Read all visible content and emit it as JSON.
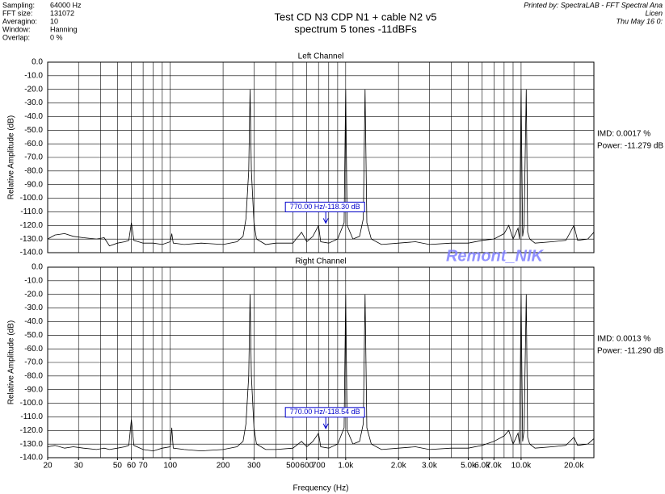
{
  "header": {
    "info_labels": [
      "Sampling:",
      "FFT size:",
      "Averagino:",
      "Window:",
      "Overlap:"
    ],
    "info_values": [
      "64000 Hz",
      "131072",
      "10",
      "Hanning",
      "0 %"
    ],
    "title": "Test CD N3  CDP N1 + cable N2   v5",
    "subtitle": "spectrum 5 tones  -11dBFs",
    "printed": "Printed by: SpectraLAB - FFT Spectral Ana",
    "license": "Licen",
    "date": "Thu May 16 0:",
    "watermark": "Remont_NIK"
  },
  "chart_data": [
    {
      "type": "line",
      "title": "Left Channel",
      "ylabel": "Relative Amplitude (dB)",
      "log_x": true,
      "grid": true,
      "xlim": [
        20,
        26000
      ],
      "ylim": [
        -140,
        0
      ],
      "xgrid": [
        20,
        30,
        40,
        50,
        60,
        70,
        80,
        90,
        100,
        200,
        300,
        400,
        500,
        600,
        700,
        800,
        900,
        1000,
        2000,
        3000,
        4000,
        5000,
        6000,
        7000,
        8000,
        9000,
        10000,
        20000
      ],
      "yticks": [
        {
          "value": 0,
          "label": "0.0"
        },
        {
          "value": -10,
          "label": "-10.0"
        },
        {
          "value": -20,
          "label": "-20.0"
        },
        {
          "value": -30,
          "label": "-30.0"
        },
        {
          "value": -40,
          "label": "-40.0"
        },
        {
          "value": -50,
          "label": "-50.0"
        },
        {
          "value": -60,
          "label": "-60.0"
        },
        {
          "value": -70,
          "label": "-70.0"
        },
        {
          "value": -80,
          "label": "-80.0"
        },
        {
          "value": -90,
          "label": "-90.0"
        },
        {
          "value": -100,
          "label": "-100.0"
        },
        {
          "value": -110,
          "label": "-110.0"
        },
        {
          "value": -120,
          "label": "-120.0"
        },
        {
          "value": -130,
          "label": "-130.0"
        },
        {
          "value": -140,
          "label": "-140.0"
        }
      ],
      "x": [
        20,
        22,
        25,
        28,
        32,
        38,
        42,
        45,
        50,
        55,
        58,
        60,
        62,
        70,
        80,
        90,
        100,
        102,
        104,
        120,
        150,
        200,
        240,
        260,
        270,
        280,
        285,
        290,
        300,
        310,
        350,
        400,
        500,
        560,
        600,
        650,
        700,
        720,
        800,
        900,
        980,
        1000,
        1020,
        1100,
        1200,
        1260,
        1290,
        1320,
        1400,
        1600,
        2000,
        2500,
        3000,
        4000,
        5000,
        6000,
        7000,
        8000,
        8500,
        9000,
        9600,
        9800,
        10000,
        10200,
        10400,
        10700,
        10900,
        11200,
        12000,
        15000,
        18000,
        20000,
        21000,
        24000,
        26000
      ],
      "series": [
        {
          "name": "Left",
          "color": "#000000",
          "values": [
            -130,
            -127,
            -126,
            -128,
            -129,
            -130,
            -129,
            -135,
            -133,
            -132,
            -131,
            -118,
            -131,
            -133,
            -133,
            -134,
            -132,
            -126,
            -133,
            -134,
            -133,
            -134,
            -132,
            -128,
            -115,
            -80,
            -20,
            -80,
            -118,
            -130,
            -134,
            -133,
            -133,
            -125,
            -132,
            -128,
            -120,
            -132,
            -133,
            -130,
            -118,
            -20,
            -120,
            -130,
            -128,
            -115,
            -20,
            -118,
            -130,
            -134,
            -133,
            -132,
            -134,
            -133,
            -133,
            -131,
            -130,
            -126,
            -120,
            -130,
            -122,
            -130,
            -20,
            -128,
            -120,
            -20,
            -125,
            -130,
            -133,
            -132,
            -131,
            -120,
            -131,
            -130,
            -125
          ]
        }
      ],
      "marker": {
        "text": "770.00 Hz/-118.30 dB",
        "x": 770,
        "y": -118.3
      },
      "info": [
        "IMD: 0.0017 %",
        "Power: -11.279 dB"
      ]
    },
    {
      "type": "line",
      "title": "Right Channel",
      "ylabel": "Relative Amplitude (dB)",
      "xlabel": "Frequency (Hz)",
      "log_x": true,
      "grid": true,
      "xlim": [
        20,
        26000
      ],
      "ylim": [
        -140,
        0
      ],
      "xgrid": [
        20,
        30,
        40,
        50,
        60,
        70,
        80,
        90,
        100,
        200,
        300,
        400,
        500,
        600,
        700,
        800,
        900,
        1000,
        2000,
        3000,
        4000,
        5000,
        6000,
        7000,
        8000,
        9000,
        10000,
        20000
      ],
      "xticks": [
        20,
        30,
        50,
        60,
        70,
        100,
        200,
        300,
        500,
        600,
        700,
        {
          "value": 1000,
          "label": "1.0k"
        },
        {
          "value": 2000,
          "label": "2.0k"
        },
        {
          "value": 3000,
          "label": "3.0k"
        },
        {
          "value": 5000,
          "label": "5.0k"
        },
        {
          "value": 6000,
          "label": "6.0k"
        },
        {
          "value": 7000,
          "label": "7.0k"
        },
        {
          "value": 10000,
          "label": "10.0k"
        },
        {
          "value": 20000,
          "label": "20.0k"
        }
      ],
      "yticks": [
        {
          "value": 0,
          "label": "0.0"
        },
        {
          "value": -10,
          "label": "-10.0"
        },
        {
          "value": -20,
          "label": "-20.0"
        },
        {
          "value": -30,
          "label": "-30.0"
        },
        {
          "value": -40,
          "label": "-40.0"
        },
        {
          "value": -50,
          "label": "-50.0"
        },
        {
          "value": -60,
          "label": "-60.0"
        },
        {
          "value": -70,
          "label": "-70.0"
        },
        {
          "value": -80,
          "label": "-80.0"
        },
        {
          "value": -90,
          "label": "-90.0"
        },
        {
          "value": -100,
          "label": "-100.0"
        },
        {
          "value": -110,
          "label": "-110.0"
        },
        {
          "value": -120,
          "label": "-120.0"
        },
        {
          "value": -130,
          "label": "-130.0"
        },
        {
          "value": -140,
          "label": "-140.0"
        }
      ],
      "x": [
        20,
        22,
        25,
        28,
        32,
        38,
        42,
        45,
        50,
        55,
        58,
        60,
        62,
        70,
        80,
        90,
        100,
        102,
        104,
        120,
        150,
        200,
        240,
        260,
        270,
        280,
        285,
        290,
        300,
        310,
        350,
        400,
        500,
        560,
        600,
        650,
        700,
        720,
        800,
        900,
        980,
        1000,
        1020,
        1100,
        1200,
        1260,
        1290,
        1320,
        1400,
        1600,
        2000,
        2500,
        3000,
        4000,
        5000,
        6000,
        7000,
        8000,
        8500,
        9000,
        9600,
        9800,
        10000,
        10200,
        10400,
        10700,
        10900,
        11200,
        12000,
        15000,
        18000,
        20000,
        21000,
        24000,
        26000
      ],
      "series": [
        {
          "name": "Right",
          "color": "#000000",
          "values": [
            -132,
            -131,
            -133,
            -132,
            -133,
            -134,
            -133,
            -134,
            -133,
            -132,
            -131,
            -112,
            -131,
            -134,
            -135,
            -133,
            -132,
            -118,
            -133,
            -134,
            -135,
            -134,
            -132,
            -128,
            -115,
            -80,
            -20,
            -80,
            -118,
            -130,
            -134,
            -134,
            -133,
            -128,
            -132,
            -128,
            -122,
            -132,
            -133,
            -130,
            -118,
            -20,
            -120,
            -130,
            -128,
            -115,
            -20,
            -118,
            -130,
            -134,
            -133,
            -132,
            -134,
            -133,
            -133,
            -131,
            -128,
            -124,
            -120,
            -130,
            -122,
            -130,
            -20,
            -128,
            -120,
            -20,
            -125,
            -130,
            -133,
            -132,
            -131,
            -125,
            -131,
            -130,
            -126
          ]
        }
      ],
      "marker": {
        "text": "770.00 Hz/-118.54 dB",
        "x": 770,
        "y": -118.54
      },
      "info": [
        "IMD: 0.0013 %",
        "Power: -11.290 dB"
      ]
    }
  ]
}
